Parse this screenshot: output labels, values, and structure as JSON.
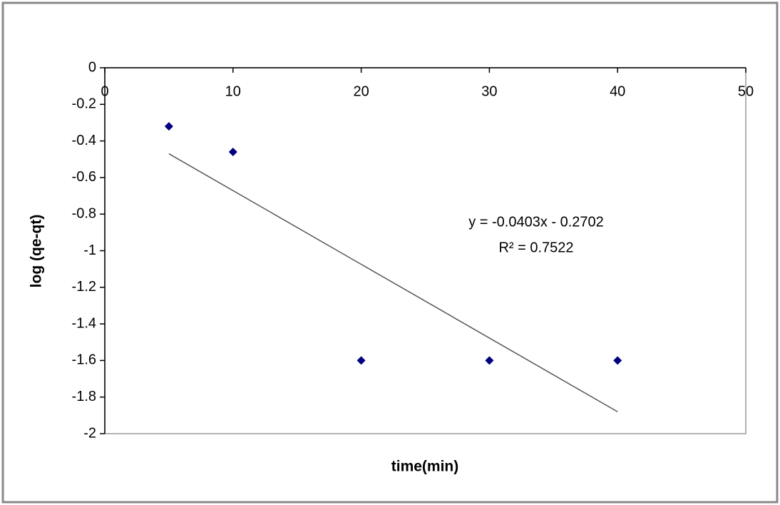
{
  "chart_data": {
    "type": "scatter",
    "xlabel": "time(min)",
    "ylabel": "log (qe-qt)",
    "x": [
      5,
      10,
      20,
      30,
      40
    ],
    "values": [
      -0.32,
      -0.46,
      -1.6,
      -1.6,
      -1.6
    ],
    "color": "#000080",
    "trendline": {
      "x": [
        5,
        40
      ],
      "values": [
        -0.47,
        -1.88
      ],
      "color": "#555555"
    },
    "annotations": [
      "y = -0.0403x - 0.2702",
      "R² = 0.7522"
    ],
    "xlim": [
      0,
      50
    ],
    "xticks": [
      0,
      10,
      20,
      30,
      40,
      50
    ],
    "ylim": [
      -2,
      0
    ],
    "yticks": [
      0,
      -0.2,
      -0.4,
      -0.6,
      -0.8,
      -1,
      -1.2,
      -1.4,
      -1.6,
      -1.8,
      -2
    ]
  }
}
